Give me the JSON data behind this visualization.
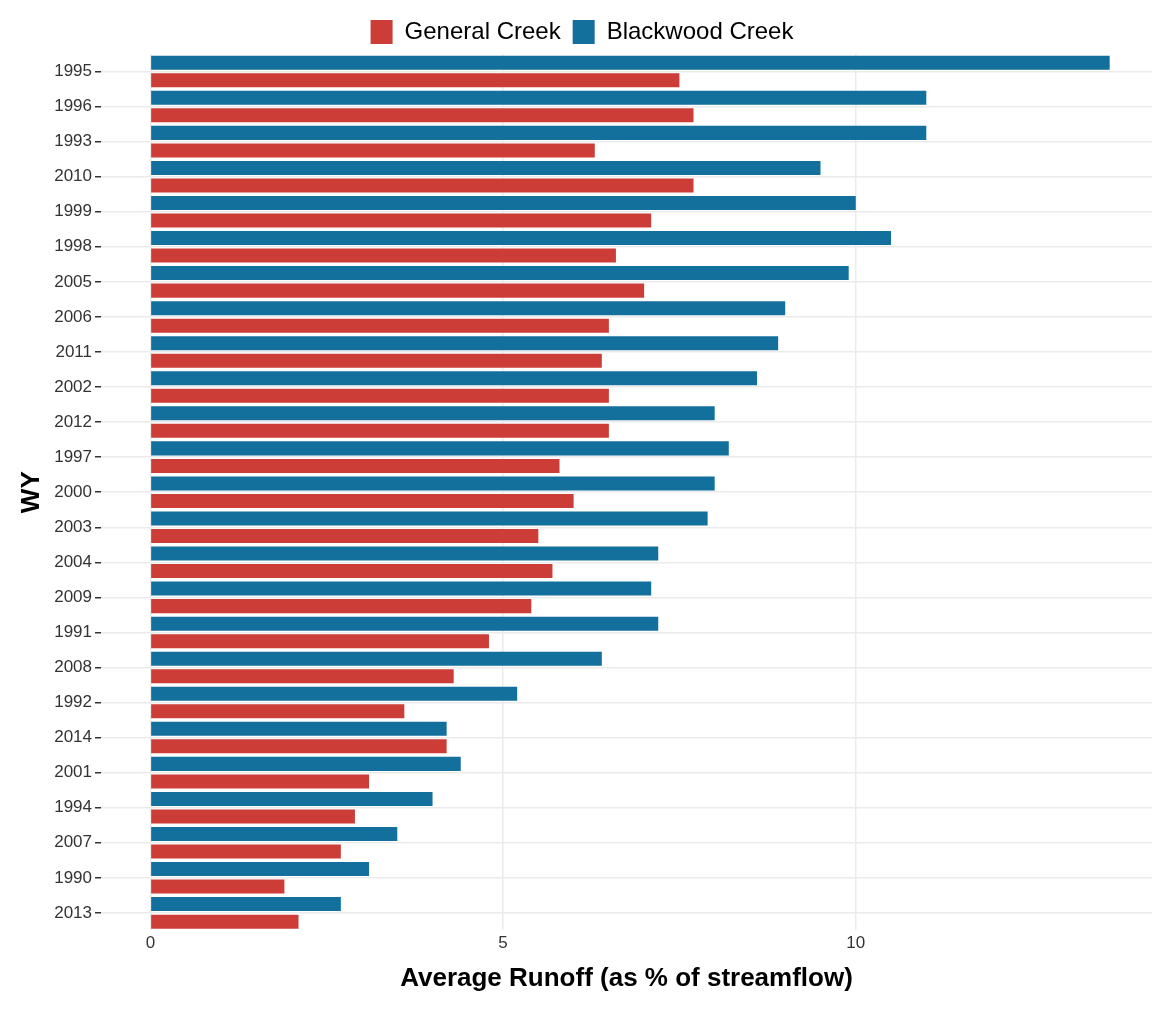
{
  "chart_data": {
    "type": "bar",
    "orientation": "horizontal",
    "xlabel": "Average Runoff (as % of streamflow)",
    "ylabel": "WY",
    "categories": [
      "1995",
      "1996",
      "1993",
      "2010",
      "1999",
      "1998",
      "2005",
      "2006",
      "2011",
      "2002",
      "2012",
      "1997",
      "2000",
      "2003",
      "2004",
      "2009",
      "1991",
      "2008",
      "1992",
      "2014",
      "2001",
      "1994",
      "2007",
      "1990",
      "2013"
    ],
    "series": [
      {
        "name": "General Creek",
        "color": "#cd3d38",
        "values": [
          7.5,
          7.7,
          6.3,
          7.7,
          7.1,
          6.6,
          7.0,
          6.5,
          6.4,
          6.5,
          6.5,
          5.8,
          6.0,
          5.5,
          5.7,
          5.4,
          4.8,
          4.3,
          3.6,
          4.2,
          3.1,
          2.9,
          2.7,
          1.9,
          2.1
        ]
      },
      {
        "name": "Blackwood Creek",
        "color": "#136f9c",
        "values": [
          13.6,
          11.0,
          11.0,
          9.5,
          10.0,
          10.5,
          9.9,
          9.0,
          8.9,
          8.6,
          8.0,
          8.2,
          8.0,
          7.9,
          7.2,
          7.1,
          7.2,
          6.4,
          5.2,
          4.2,
          4.4,
          4.0,
          3.5,
          3.1,
          2.7
        ]
      }
    ],
    "xlim": [
      -0.7,
      14.2
    ],
    "xticks": [
      0,
      5,
      10
    ],
    "grid": true,
    "legend": "top"
  }
}
